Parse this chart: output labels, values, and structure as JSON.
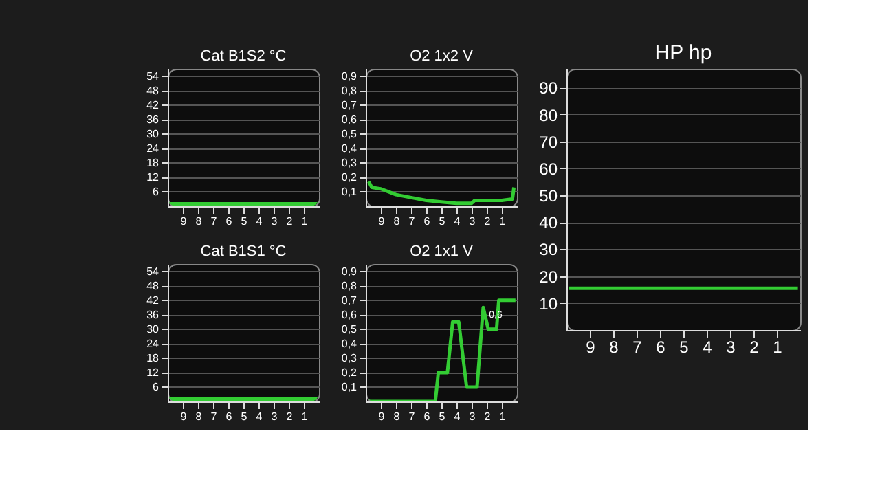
{
  "chart_data": [
    {
      "type": "line",
      "title": "Cat B1S2 °C",
      "xlim": [
        10,
        0
      ],
      "xticks": [
        9,
        8,
        7,
        6,
        5,
        4,
        3,
        2,
        1
      ],
      "ylim": [
        0,
        57
      ],
      "yticks": [
        6,
        12,
        18,
        24,
        30,
        36,
        42,
        48,
        54
      ],
      "grid": "y",
      "series": [
        {
          "color": "#33cc33",
          "x": [
            9.9,
            0.1
          ],
          "values": [
            1,
            1
          ]
        }
      ]
    },
    {
      "type": "line",
      "title": "O2 1x2 V",
      "xlim": [
        10,
        0
      ],
      "xticks": [
        9,
        8,
        7,
        6,
        5,
        4,
        3,
        2,
        1
      ],
      "ylim": [
        0,
        0.95
      ],
      "yticks": [
        {
          "value": 0.1,
          "label": "0,1"
        },
        {
          "value": 0.2,
          "label": "0,2"
        },
        {
          "value": 0.3,
          "label": "0,3"
        },
        {
          "value": 0.4,
          "label": "0,4"
        },
        {
          "value": 0.5,
          "label": "0,5"
        },
        {
          "value": 0.6,
          "label": "0,6"
        },
        {
          "value": 0.7,
          "label": "0,7"
        },
        {
          "value": 0.8,
          "label": "0,8"
        },
        {
          "value": 0.9,
          "label": "0,9"
        }
      ],
      "grid": "y",
      "series": [
        {
          "color": "#33cc33",
          "x": [
            9.8,
            9.6,
            9.0,
            8.5,
            8.0,
            7.0,
            6.0,
            5.0,
            4.0,
            3.0,
            2.8,
            1.0,
            0.3,
            0.2
          ],
          "values": [
            0.17,
            0.13,
            0.12,
            0.1,
            0.08,
            0.06,
            0.04,
            0.03,
            0.02,
            0.02,
            0.04,
            0.04,
            0.05,
            0.13
          ]
        }
      ]
    },
    {
      "type": "line",
      "title": "Cat B1S1 °C",
      "xlim": [
        10,
        0
      ],
      "xticks": [
        9,
        8,
        7,
        6,
        5,
        4,
        3,
        2,
        1
      ],
      "ylim": [
        0,
        57
      ],
      "yticks": [
        6,
        12,
        18,
        24,
        30,
        36,
        42,
        48,
        54
      ],
      "grid": "y",
      "series": [
        {
          "color": "#33cc33",
          "x": [
            9.9,
            0.1
          ],
          "values": [
            1,
            1
          ]
        }
      ]
    },
    {
      "type": "line",
      "title": "O2 1x1 V",
      "xlim": [
        10,
        0
      ],
      "xticks": [
        9,
        8,
        7,
        6,
        5,
        4,
        3,
        2,
        1
      ],
      "ylim": [
        0,
        0.95
      ],
      "yticks": [
        {
          "value": 0.1,
          "label": "0,1"
        },
        {
          "value": 0.2,
          "label": "0,2"
        },
        {
          "value": 0.3,
          "label": "0,3"
        },
        {
          "value": 0.4,
          "label": "0,4"
        },
        {
          "value": 0.5,
          "label": "0,5"
        },
        {
          "value": 0.6,
          "label": "0,6"
        },
        {
          "value": 0.7,
          "label": "0,7"
        },
        {
          "value": 0.8,
          "label": "0,8"
        },
        {
          "value": 0.9,
          "label": "0,9"
        }
      ],
      "grid": "y",
      "annotations": [
        {
          "text": "0,6",
          "x": 1.85,
          "y": 0.6
        }
      ],
      "series": [
        {
          "color": "#33cc33",
          "x": [
            9.8,
            5.4,
            5.2,
            4.6,
            4.25,
            3.85,
            3.33,
            2.64,
            2.23,
            1.9,
            1.35,
            1.2,
            0.1
          ],
          "values": [
            0,
            0,
            0.2,
            0.2,
            0.55,
            0.55,
            0.1,
            0.1,
            0.65,
            0.5,
            0.5,
            0.7,
            0.7
          ]
        }
      ]
    },
    {
      "type": "line",
      "title": "HP hp",
      "xlim": [
        10,
        0
      ],
      "xticks": [
        9,
        8,
        7,
        6,
        5,
        4,
        3,
        2,
        1
      ],
      "ylim": [
        0,
        97
      ],
      "yticks": [
        10,
        20,
        30,
        40,
        50,
        60,
        70,
        80,
        90
      ],
      "grid": "y",
      "series": [
        {
          "color": "#33cc33",
          "x": [
            9.9,
            0.1
          ],
          "values": [
            15.5,
            15.5
          ]
        }
      ]
    }
  ]
}
